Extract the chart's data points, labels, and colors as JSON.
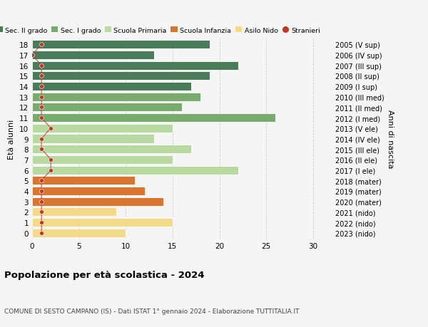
{
  "ages": [
    18,
    17,
    16,
    15,
    14,
    13,
    12,
    11,
    10,
    9,
    8,
    7,
    6,
    5,
    4,
    3,
    2,
    1,
    0
  ],
  "right_labels": [
    "2005 (V sup)",
    "2006 (IV sup)",
    "2007 (III sup)",
    "2008 (II sup)",
    "2009 (I sup)",
    "2010 (III med)",
    "2011 (II med)",
    "2012 (I med)",
    "2013 (V ele)",
    "2014 (IV ele)",
    "2015 (III ele)",
    "2016 (II ele)",
    "2017 (I ele)",
    "2018 (mater)",
    "2019 (mater)",
    "2020 (mater)",
    "2021 (nido)",
    "2022 (nido)",
    "2023 (nido)"
  ],
  "bar_values": [
    19,
    13,
    22,
    19,
    17,
    18,
    16,
    26,
    15,
    13,
    17,
    15,
    22,
    11,
    12,
    14,
    9,
    15,
    10
  ],
  "stranieri_values": [
    1,
    0,
    1,
    1,
    1,
    1,
    1,
    1,
    2,
    1,
    1,
    2,
    2,
    1,
    1,
    1,
    1,
    1,
    1
  ],
  "bar_colors": [
    "#4a7c59",
    "#4a7c59",
    "#4a7c59",
    "#4a7c59",
    "#4a7c59",
    "#7aab6e",
    "#7aab6e",
    "#7aab6e",
    "#b8d9a0",
    "#b8d9a0",
    "#b8d9a0",
    "#b8d9a0",
    "#b8d9a0",
    "#d97530",
    "#d97530",
    "#d97530",
    "#f5d98b",
    "#f5d98b",
    "#f5d98b"
  ],
  "legend_items": [
    {
      "label": "Sec. II grado",
      "color": "#4a7c59"
    },
    {
      "label": "Sec. I grado",
      "color": "#7aab6e"
    },
    {
      "label": "Scuola Primaria",
      "color": "#b8d9a0"
    },
    {
      "label": "Scuola Infanzia",
      "color": "#d97530"
    },
    {
      "label": "Asilo Nido",
      "color": "#f5d98b"
    },
    {
      "label": "Stranieri",
      "color": "#c0392b"
    }
  ],
  "stranieri_color": "#c0392b",
  "xlim": [
    0,
    32
  ],
  "xticks": [
    0,
    5,
    10,
    15,
    20,
    25,
    30
  ],
  "ylabel_left": "Età alunni",
  "ylabel_right": "Anni di nascita",
  "title": "Popolazione per età scolastica - 2024",
  "subtitle": "COMUNE DI SESTO CAMPANO (IS) - Dati ISTAT 1° gennaio 2024 - Elaborazione TUTTITALIA.IT",
  "bg_color": "#f5f5f5",
  "grid_color": "#cccccc"
}
